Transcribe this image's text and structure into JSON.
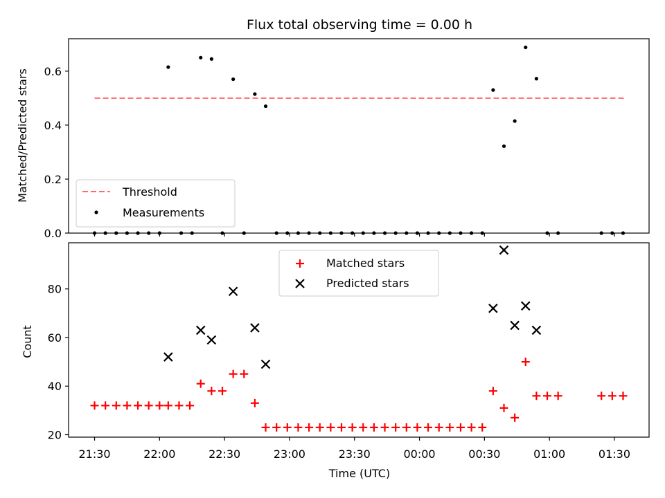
{
  "chart_data": [
    {
      "type": "scatter",
      "title": "Flux total observing time = 0.00 h",
      "xlabel": "",
      "ylabel": "Matched/Predicted stars",
      "xlim": [
        "21:18",
        "01:46"
      ],
      "ylim": [
        0,
        0.72
      ],
      "yticks": [
        "0.0",
        "0.2",
        "0.4",
        "0.6"
      ],
      "legend_position": "lower-left",
      "threshold": {
        "name": "Threshold",
        "value": 0.5,
        "x_start": "21:30",
        "x_end": "01:35",
        "color": "#ff6b6b"
      },
      "measurements": {
        "name": "Measurements",
        "color": "#000000",
        "points": [
          [
            "21:30",
            0
          ],
          [
            "21:35",
            0
          ],
          [
            "21:40",
            0
          ],
          [
            "21:45",
            0
          ],
          [
            "21:50",
            0
          ],
          [
            "21:55",
            0
          ],
          [
            "22:00",
            0
          ],
          [
            "22:04",
            0.615
          ],
          [
            "22:10",
            0
          ],
          [
            "22:15",
            0
          ],
          [
            "22:19",
            0.65
          ],
          [
            "22:24",
            0.645
          ],
          [
            "22:29",
            0
          ],
          [
            "22:34",
            0.57
          ],
          [
            "22:39",
            0
          ],
          [
            "22:44",
            0.515
          ],
          [
            "22:49",
            0.47
          ],
          [
            "22:54",
            0
          ],
          [
            "22:59",
            0
          ],
          [
            "23:04",
            0
          ],
          [
            "23:09",
            0
          ],
          [
            "23:14",
            0
          ],
          [
            "23:19",
            0
          ],
          [
            "23:24",
            0
          ],
          [
            "23:29",
            0
          ],
          [
            "23:34",
            0
          ],
          [
            "23:39",
            0
          ],
          [
            "23:44",
            0
          ],
          [
            "23:49",
            0
          ],
          [
            "23:54",
            0
          ],
          [
            "23:59",
            0
          ],
          [
            "00:04",
            0
          ],
          [
            "00:09",
            0
          ],
          [
            "00:14",
            0
          ],
          [
            "00:19",
            0
          ],
          [
            "00:24",
            0
          ],
          [
            "00:29",
            0
          ],
          [
            "00:34",
            0.53
          ],
          [
            "00:39",
            0.322
          ],
          [
            "00:44",
            0.415
          ],
          [
            "00:49",
            0.688
          ],
          [
            "00:54",
            0.572
          ],
          [
            "00:59",
            0
          ],
          [
            "01:04",
            0
          ],
          [
            "01:24",
            0
          ],
          [
            "01:29",
            0
          ],
          [
            "01:34",
            0
          ]
        ]
      }
    },
    {
      "type": "scatter",
      "title": "",
      "xlabel": "Time (UTC)",
      "ylabel": "Count",
      "xlim": [
        "21:18",
        "01:46"
      ],
      "ylim": [
        19,
        99
      ],
      "xticks": [
        "21:30",
        "22:00",
        "22:30",
        "23:00",
        "23:30",
        "00:00",
        "00:30",
        "01:00",
        "01:30"
      ],
      "yticks": [
        "20",
        "40",
        "60",
        "80"
      ],
      "legend_position": "top-center",
      "series": [
        {
          "name": "Matched stars",
          "marker": "plus",
          "color": "#ff0000",
          "points": [
            [
              "21:30",
              32
            ],
            [
              "21:35",
              32
            ],
            [
              "21:40",
              32
            ],
            [
              "21:45",
              32
            ],
            [
              "21:50",
              32
            ],
            [
              "21:55",
              32
            ],
            [
              "22:00",
              32
            ],
            [
              "22:04",
              32
            ],
            [
              "22:09",
              32
            ],
            [
              "22:14",
              32
            ],
            [
              "22:19",
              41
            ],
            [
              "22:24",
              38
            ],
            [
              "22:29",
              38
            ],
            [
              "22:34",
              45
            ],
            [
              "22:39",
              45
            ],
            [
              "22:44",
              33
            ],
            [
              "22:49",
              23
            ],
            [
              "22:54",
              23
            ],
            [
              "22:59",
              23
            ],
            [
              "23:04",
              23
            ],
            [
              "23:09",
              23
            ],
            [
              "23:14",
              23
            ],
            [
              "23:19",
              23
            ],
            [
              "23:24",
              23
            ],
            [
              "23:29",
              23
            ],
            [
              "23:34",
              23
            ],
            [
              "23:39",
              23
            ],
            [
              "23:44",
              23
            ],
            [
              "23:49",
              23
            ],
            [
              "23:54",
              23
            ],
            [
              "23:59",
              23
            ],
            [
              "00:04",
              23
            ],
            [
              "00:09",
              23
            ],
            [
              "00:14",
              23
            ],
            [
              "00:19",
              23
            ],
            [
              "00:24",
              23
            ],
            [
              "00:29",
              23
            ],
            [
              "00:34",
              38
            ],
            [
              "00:39",
              31
            ],
            [
              "00:44",
              27
            ],
            [
              "00:49",
              50
            ],
            [
              "00:54",
              36
            ],
            [
              "00:59",
              36
            ],
            [
              "01:04",
              36
            ],
            [
              "01:24",
              36
            ],
            [
              "01:29",
              36
            ],
            [
              "01:34",
              36
            ]
          ]
        },
        {
          "name": "Predicted stars",
          "marker": "x",
          "color": "#000000",
          "points": [
            [
              "22:04",
              52
            ],
            [
              "22:19",
              63
            ],
            [
              "22:24",
              59
            ],
            [
              "22:34",
              79
            ],
            [
              "22:44",
              64
            ],
            [
              "22:49",
              49
            ],
            [
              "00:34",
              72
            ],
            [
              "00:39",
              96
            ],
            [
              "00:44",
              65
            ],
            [
              "00:49",
              73
            ],
            [
              "00:54",
              63
            ]
          ]
        }
      ]
    }
  ]
}
